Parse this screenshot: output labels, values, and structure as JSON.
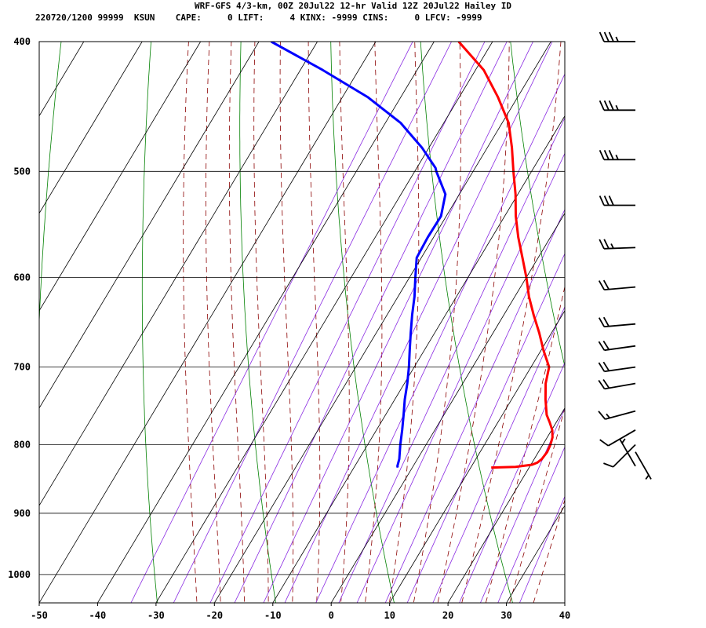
{
  "header": {
    "line1": "WRF-GFS 4/3-km, 00Z 20Jul22 12-hr Valid 12Z 20Jul22 Hailey ID",
    "line2": "220720/1200 99999  KSUN    CAPE:     0 LIFT:     4 KINX: -9999 CINS:     0 LFCV: -9999"
  },
  "chart_data": {
    "type": "skew-t log-p sounding",
    "pressure_ticks": [
      400,
      500,
      600,
      700,
      800,
      900,
      1000
    ],
    "temperature_ticks": [
      -50,
      -40,
      -30,
      -20,
      -10,
      0,
      10,
      20,
      30,
      40
    ],
    "pressure_range_hpa": [
      400,
      1050
    ],
    "temperature_range_c_at_bottom": [
      -50,
      40
    ],
    "grid": true,
    "series": [
      {
        "color": "#ff0000",
        "points_p_t": [
          [
            832,
            13.5
          ],
          [
            831,
            17.6
          ],
          [
            828,
            20.2
          ],
          [
            825,
            20.9
          ],
          [
            820,
            21.3
          ],
          [
            810,
            21.5
          ],
          [
            800,
            21.3
          ],
          [
            790,
            20.9
          ],
          [
            780,
            20.1
          ],
          [
            770,
            18.9
          ],
          [
            760,
            17.6
          ],
          [
            740,
            15.8
          ],
          [
            720,
            14.2
          ],
          [
            700,
            13.1
          ],
          [
            680,
            10.4
          ],
          [
            660,
            7.9
          ],
          [
            640,
            5.1
          ],
          [
            620,
            2.4
          ],
          [
            600,
            0.0
          ],
          [
            580,
            -2.7
          ],
          [
            560,
            -5.5
          ],
          [
            540,
            -8.1
          ],
          [
            520,
            -10.4
          ],
          [
            500,
            -13.1
          ],
          [
            480,
            -15.8
          ],
          [
            460,
            -18.9
          ],
          [
            440,
            -23.4
          ],
          [
            420,
            -28.6
          ],
          [
            400,
            -35.8
          ]
        ]
      },
      {
        "color": "#0000ff",
        "points_p_t": [
          [
            832,
            -2.5
          ],
          [
            830,
            -2.7
          ],
          [
            820,
            -3.1
          ],
          [
            800,
            -4.4
          ],
          [
            780,
            -5.6
          ],
          [
            760,
            -6.9
          ],
          [
            740,
            -8.3
          ],
          [
            720,
            -9.5
          ],
          [
            700,
            -10.9
          ],
          [
            680,
            -12.5
          ],
          [
            660,
            -14.1
          ],
          [
            640,
            -15.7
          ],
          [
            620,
            -17.2
          ],
          [
            600,
            -19.0
          ],
          [
            580,
            -20.8
          ],
          [
            560,
            -21.0
          ],
          [
            540,
            -20.9
          ],
          [
            520,
            -22.4
          ],
          [
            500,
            -26.3
          ],
          [
            497,
            -26.8
          ],
          [
            480,
            -31.2
          ],
          [
            460,
            -37.4
          ],
          [
            440,
            -45.7
          ],
          [
            420,
            -56.2
          ],
          [
            400,
            -67.9
          ]
        ]
      }
    ],
    "wind_barbs": [
      {
        "pressure": 400,
        "direction_deg": 270,
        "speed_kt": 35
      },
      {
        "pressure": 450,
        "direction_deg": 270,
        "speed_kt": 35
      },
      {
        "pressure": 490,
        "direction_deg": 270,
        "speed_kt": 35
      },
      {
        "pressure": 530,
        "direction_deg": 270,
        "speed_kt": 30
      },
      {
        "pressure": 570,
        "direction_deg": 268,
        "speed_kt": 25
      },
      {
        "pressure": 610,
        "direction_deg": 265,
        "speed_kt": 20
      },
      {
        "pressure": 650,
        "direction_deg": 265,
        "speed_kt": 20
      },
      {
        "pressure": 675,
        "direction_deg": 262,
        "speed_kt": 20
      },
      {
        "pressure": 700,
        "direction_deg": 262,
        "speed_kt": 20
      },
      {
        "pressure": 720,
        "direction_deg": 260,
        "speed_kt": 20
      },
      {
        "pressure": 755,
        "direction_deg": 255,
        "speed_kt": 15
      },
      {
        "pressure": 780,
        "direction_deg": 240,
        "speed_kt": 10
      },
      {
        "pressure": 800,
        "direction_deg": 225,
        "speed_kt": 10
      },
      {
        "pressure": 810,
        "direction_deg": 150,
        "speed_kt": 5
      },
      {
        "pressure": 830,
        "direction_deg": 330,
        "speed_kt": 5
      }
    ],
    "background_colors": {
      "isotherm": "#000000",
      "dry_adiabat": "#008000",
      "moist_adiabat": "#8b0000",
      "mixing_ratio": "#8a2be2"
    }
  }
}
